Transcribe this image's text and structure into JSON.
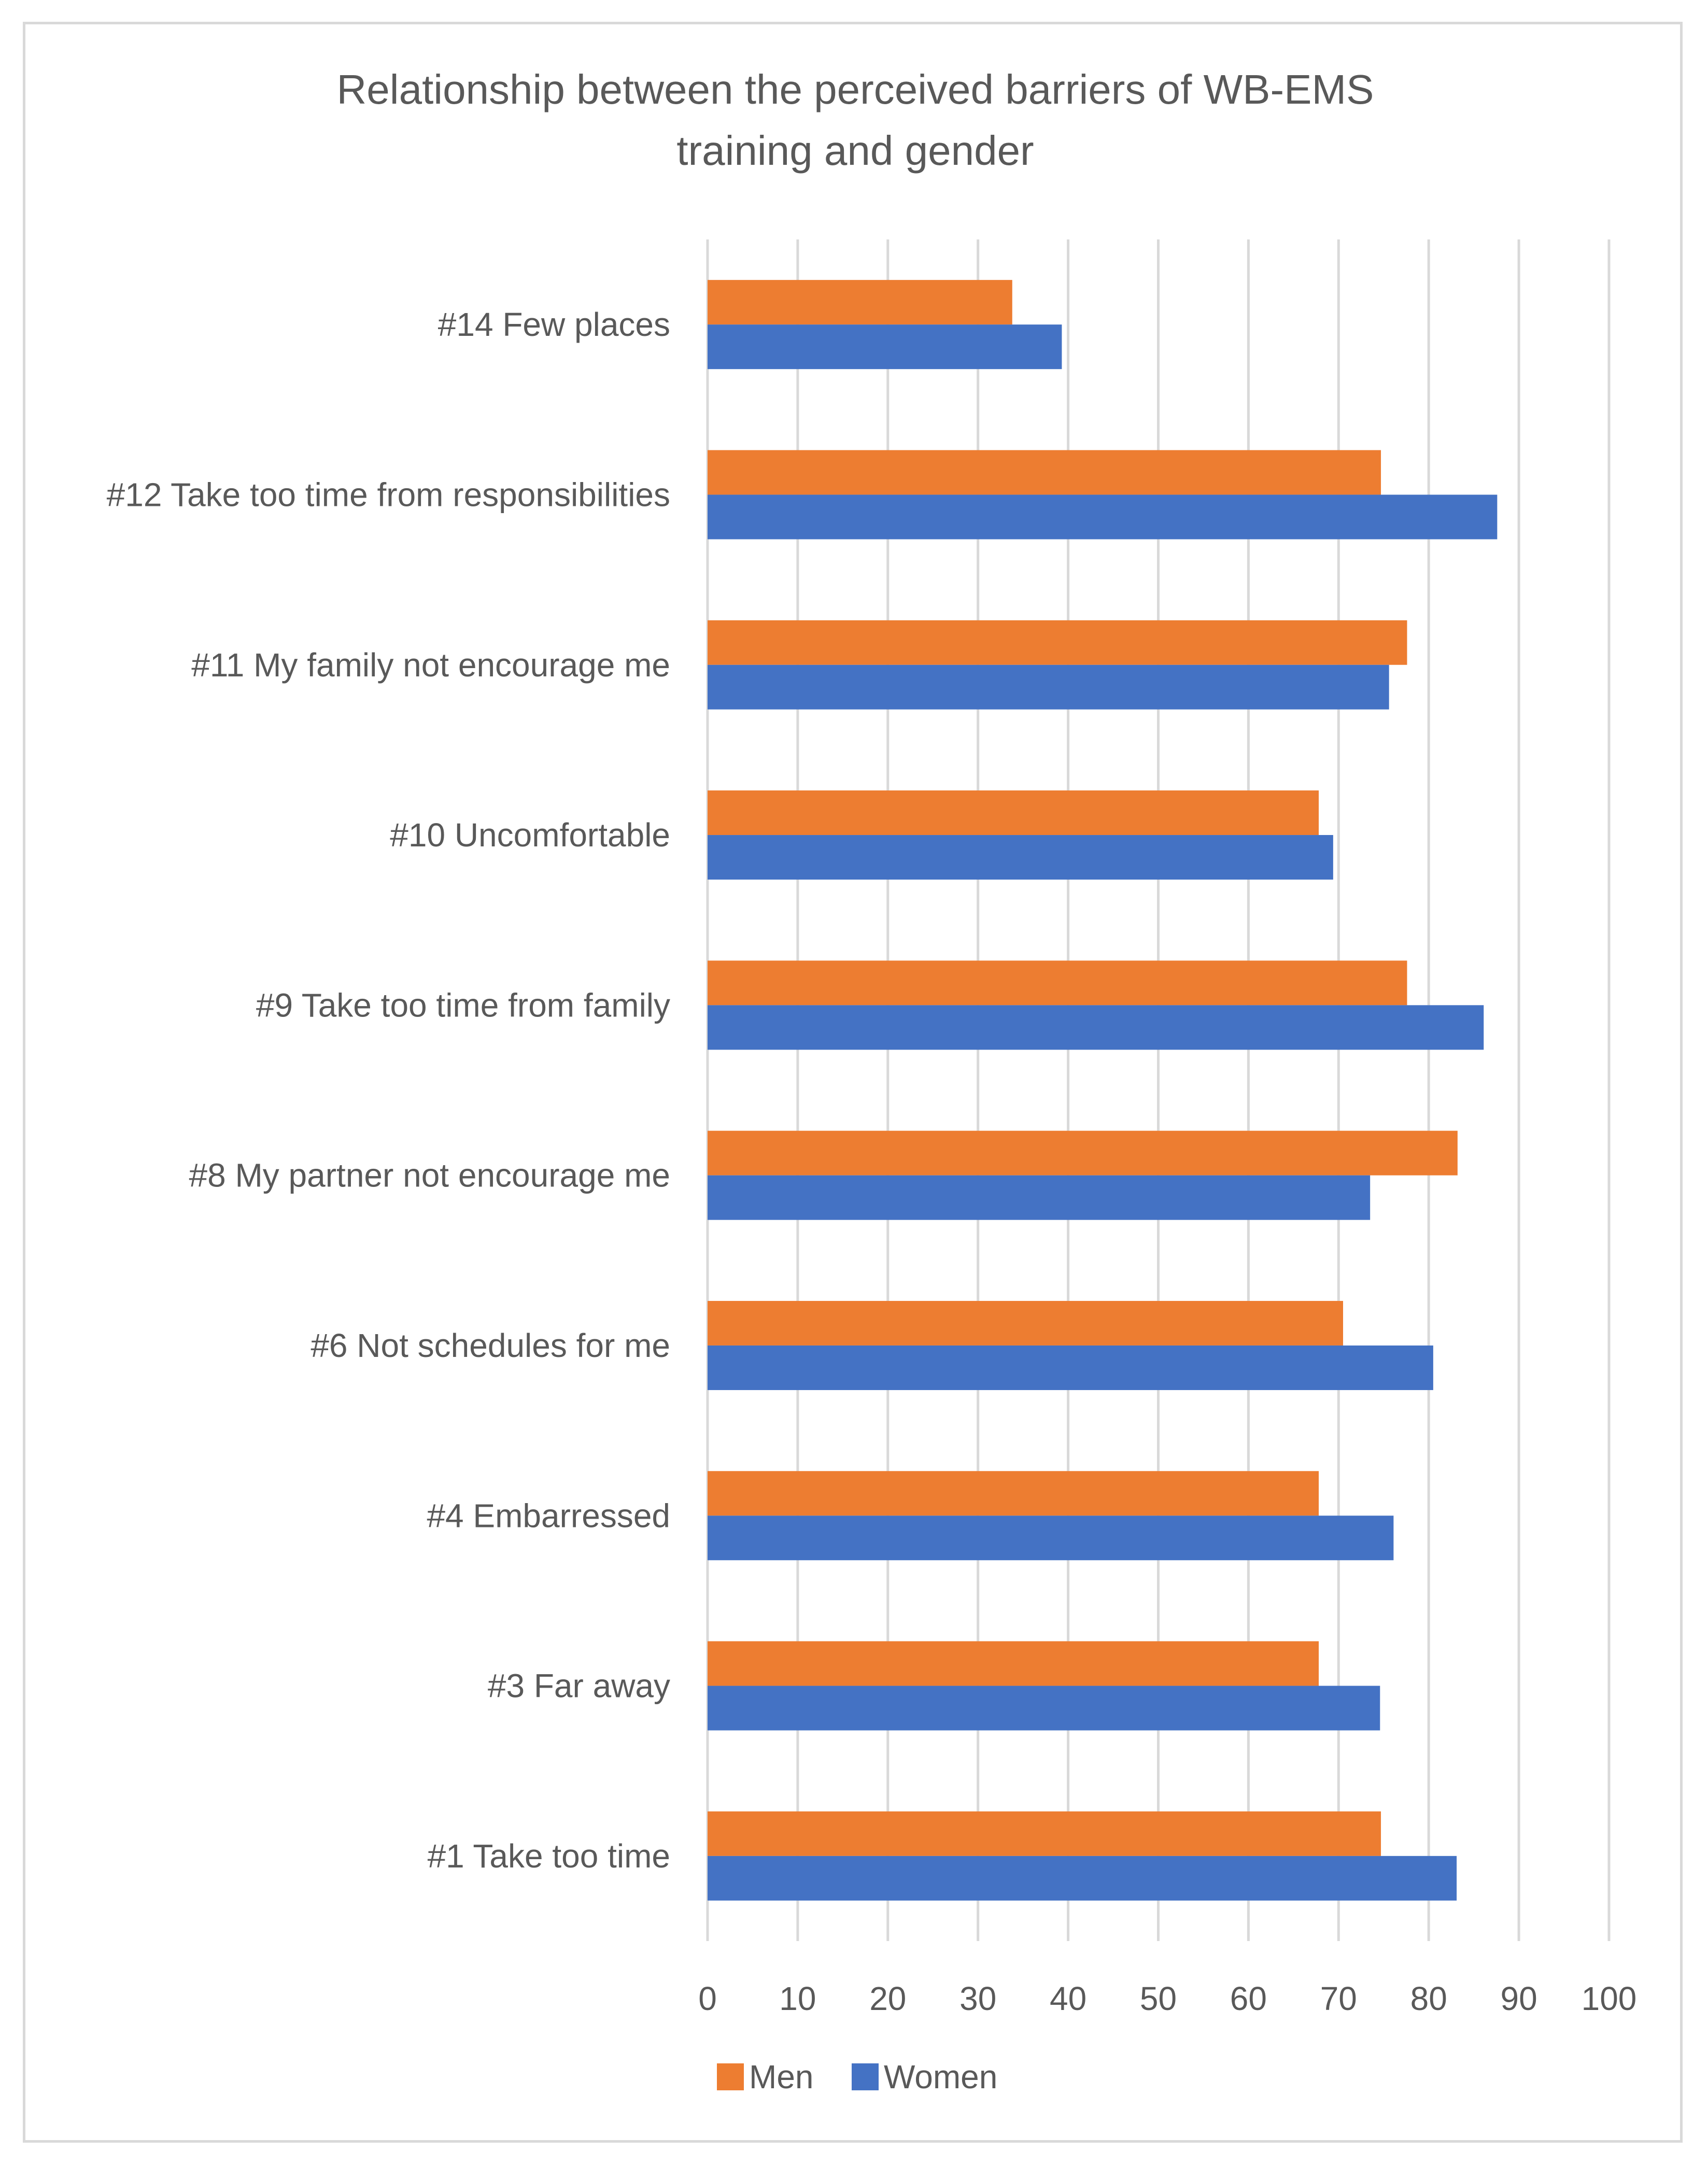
{
  "chart_data": {
    "type": "bar",
    "orientation": "horizontal",
    "title": "Relationship between the perceived barriers of WB-EMS training and gender",
    "title_lines": [
      "Relationship between the perceived barriers of WB-EMS",
      "training and gender"
    ],
    "categories": [
      "#14 Few places",
      "#12 Take too time from responsibilities",
      "#11 My family not encourage me",
      "#10 Uncomfortable",
      "#9 Take too time from family",
      "#8 My partner not encourage me",
      "#6 Not schedules for me",
      "#4 Embarressed",
      "#3 Far away",
      "#1 Take too time"
    ],
    "series": [
      {
        "name": "Men",
        "color": "#ed7d31",
        "values": [
          33.8,
          74.7,
          77.6,
          67.8,
          77.6,
          83.2,
          70.5,
          67.8,
          67.8,
          74.7
        ]
      },
      {
        "name": "Women",
        "color": "#4472c4",
        "values": [
          39.3,
          87.6,
          75.6,
          69.4,
          86.1,
          73.5,
          80.5,
          76.1,
          74.6,
          83.1
        ]
      }
    ],
    "xlim": [
      0,
      100
    ],
    "xticks": [
      0,
      10,
      20,
      30,
      40,
      50,
      60,
      70,
      80,
      90,
      100
    ],
    "xlabel": "",
    "ylabel": "",
    "grid": true,
    "legend": "bottom",
    "gridline_color": "#d9d9d9"
  }
}
